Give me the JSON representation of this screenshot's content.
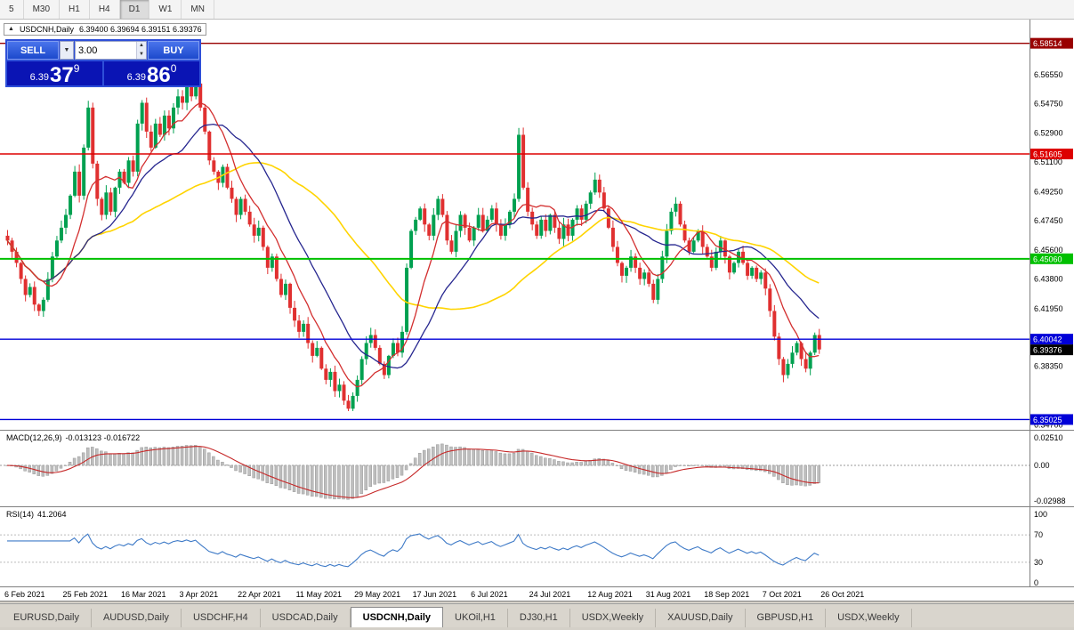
{
  "icons": {
    "panel_toggle": "▲",
    "chevron_down": "▼",
    "spinner_up": "▲",
    "spinner_down": "▼"
  },
  "toolbar": {
    "timeframes": [
      "5",
      "M30",
      "H1",
      "H4",
      "D1",
      "W1",
      "MN"
    ],
    "active": "D1"
  },
  "chart": {
    "symbol": "USDCNH,Daily",
    "ohlc": "6.39400 6.39694 6.39151 6.39376"
  },
  "trade_panel": {
    "sell_label": "SELL",
    "buy_label": "BUY",
    "volume": "3.00",
    "bid": {
      "prefix": "6.39",
      "big": "37",
      "sup": "9"
    },
    "ask": {
      "prefix": "6.39",
      "big": "86",
      "sup": "0"
    }
  },
  "tab_bar": {
    "active_index": 4,
    "tabs": [
      {
        "label": "EURUSD,Daily"
      },
      {
        "label": "AUDUSD,Daily"
      },
      {
        "label": "USDCHF,H4"
      },
      {
        "label": "USDCAD,Daily"
      },
      {
        "label": "USDCNH,Daily"
      },
      {
        "label": "UKOil,H1"
      },
      {
        "label": "DJ30,H1"
      },
      {
        "label": "USDX,Weekly"
      },
      {
        "label": "XAUUSD,Daily"
      },
      {
        "label": "GBPUSD,H1"
      },
      {
        "label": "USDX,Weekly"
      }
    ]
  },
  "chart_data": {
    "type": "candlestick",
    "symbol": "USDCNH",
    "timeframe": "Daily",
    "title": "USDCNH,Daily 6.39400 6.39694 6.39151 6.39376",
    "y_range": {
      "max": 6.5955,
      "min": 6.3455
    },
    "up_color": "#00A050",
    "down_color": "#E03030",
    "first_open": 6.465,
    "bars_per_label": 13,
    "closes": [
      6.462,
      6.455,
      6.448,
      6.438,
      6.428,
      6.433,
      6.422,
      6.418,
      6.425,
      6.438,
      6.452,
      6.462,
      6.47,
      6.478,
      6.49,
      6.505,
      6.49,
      6.52,
      6.545,
      6.51,
      6.488,
      6.478,
      6.492,
      6.48,
      6.495,
      6.505,
      6.498,
      6.512,
      6.505,
      6.535,
      6.548,
      6.53,
      6.52,
      6.535,
      6.528,
      6.54,
      6.532,
      6.545,
      6.552,
      6.548,
      6.558,
      6.552,
      6.56,
      6.545,
      6.53,
      6.512,
      6.505,
      6.498,
      6.508,
      6.495,
      6.488,
      6.478,
      6.488,
      6.48,
      6.472,
      6.465,
      6.47,
      6.458,
      6.445,
      6.452,
      6.438,
      6.428,
      6.435,
      6.42,
      6.412,
      6.405,
      6.41,
      6.398,
      6.39,
      6.395,
      6.382,
      6.375,
      6.38,
      6.368,
      6.372,
      6.362,
      6.357,
      6.365,
      6.375,
      6.388,
      6.398,
      6.403,
      6.395,
      6.385,
      6.378,
      6.39,
      6.398,
      6.392,
      6.405,
      6.445,
      6.468,
      6.475,
      6.482,
      6.472,
      6.465,
      6.478,
      6.488,
      6.478,
      6.462,
      6.455,
      6.468,
      6.478,
      6.47,
      6.462,
      6.47,
      6.478,
      6.468,
      6.475,
      6.482,
      6.472,
      6.465,
      6.472,
      6.48,
      6.488,
      6.528,
      6.495,
      6.48,
      6.472,
      6.465,
      6.475,
      6.468,
      6.478,
      6.47,
      6.463,
      6.472,
      6.465,
      6.475,
      6.482,
      6.475,
      6.485,
      6.492,
      6.5,
      6.492,
      6.482,
      6.47,
      6.458,
      6.448,
      6.44,
      6.445,
      6.452,
      6.445,
      6.438,
      6.442,
      6.435,
      6.425,
      6.438,
      6.452,
      6.468,
      6.48,
      6.485,
      6.472,
      6.462,
      6.455,
      6.462,
      6.468,
      6.458,
      6.452,
      6.445,
      6.455,
      6.462,
      6.452,
      6.442,
      6.448,
      6.455,
      6.448,
      6.44,
      6.445,
      6.438,
      6.442,
      6.432,
      6.418,
      6.402,
      6.388,
      6.378,
      6.385,
      6.392,
      6.398,
      6.388,
      6.382,
      6.392,
      6.403,
      6.394
    ],
    "x_labels": [
      "6 Feb 2021",
      "25 Feb 2021",
      "16 Mar 2021",
      "3 Apr 2021",
      "22 Apr 2021",
      "11 May 2021",
      "29 May 2021",
      "17 Jun 2021",
      "6 Jul 2021",
      "24 Jul 2021",
      "12 Aug 2021",
      "31 Aug 2021",
      "18 Sep 2021",
      "7 Oct 2021",
      "26 Oct 2021"
    ],
    "price_axis_ticks": [
      "6.56550",
      "6.54750",
      "6.52900",
      "6.51100",
      "6.49250",
      "6.47450",
      "6.45600",
      "6.43800",
      "6.41950",
      "6.38350",
      "6.34700"
    ],
    "levels": [
      {
        "price": 6.58514,
        "label": "6.58514",
        "color": "#990000",
        "width": 1.4
      },
      {
        "price": 6.51605,
        "label": "6.51605",
        "color": "#DD0000",
        "width": 1.4
      },
      {
        "price": 6.4506,
        "label": "6.45060",
        "color": "#00C000",
        "width": 2
      },
      {
        "price": 6.40042,
        "label": "6.40042",
        "color": "#0000D8",
        "width": 1.4
      },
      {
        "price": 6.35025,
        "label": "6.35025",
        "color": "#0000D8",
        "width": 1.4
      }
    ],
    "current_price": {
      "price": 6.39376,
      "label": "6.39376",
      "bg": "#000000"
    },
    "indicators": {
      "ma_fast": {
        "period": 9,
        "color": "#D32F2F"
      },
      "ma_mid": {
        "period": 20,
        "color": "#26268F"
      },
      "ma_slow": {
        "period": 45,
        "color": "#FFD400"
      },
      "macd": {
        "label": "MACD(12,26,9)",
        "values": "-0.013123 -0.016722",
        "fast": 12,
        "slow": 26,
        "signal": 9,
        "axis": [
          "0.02510",
          "0.00",
          "-0.02988"
        ],
        "hist_color": "#BEBEBE",
        "hist_stroke": "#9A9A9A",
        "signal_color": "#C62828"
      },
      "rsi": {
        "label": "RSI(14)",
        "value": "41.2064",
        "period": 14,
        "axis": [
          "100",
          "70",
          "30",
          "0"
        ],
        "guide_levels": [
          70,
          30
        ],
        "color": "#3E7AC7"
      }
    }
  }
}
